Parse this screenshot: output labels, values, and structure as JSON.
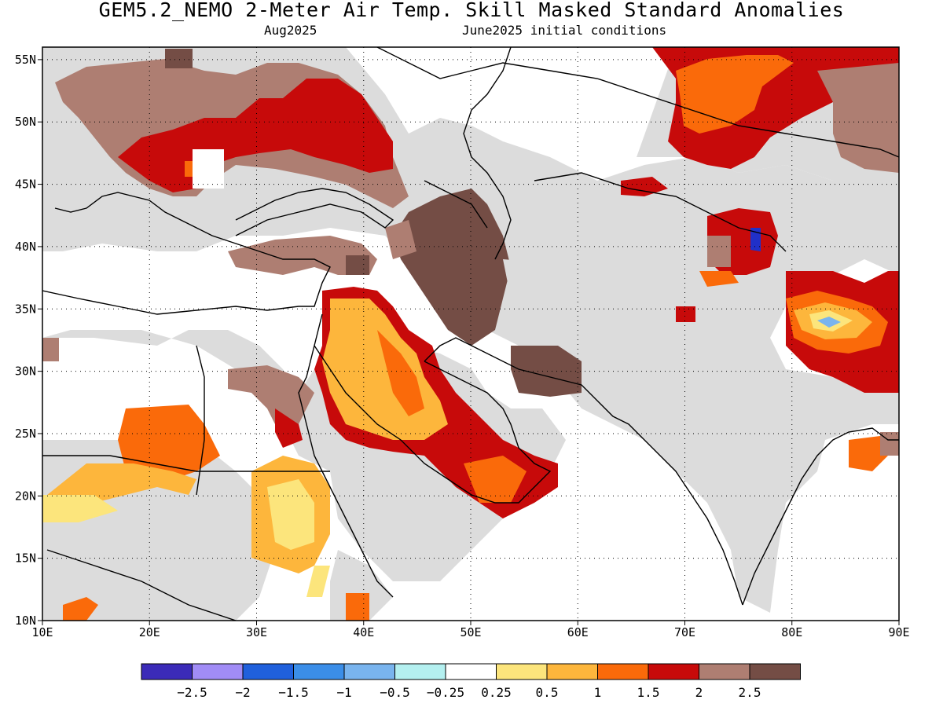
{
  "title": "GEM5.2_NEMO 2-Meter Air Temp. Skill Masked Standard Anomalies",
  "valid_month": "Aug2025",
  "init_conditions": "June2025 initial conditions",
  "map": {
    "lon_range": [
      10,
      90
    ],
    "lat_range": [
      10,
      56
    ],
    "lon_ticks": [
      "10E",
      "20E",
      "30E",
      "40E",
      "50E",
      "60E",
      "70E",
      "80E",
      "90E"
    ],
    "lat_ticks": [
      "10N",
      "15N",
      "20N",
      "25N",
      "30N",
      "35N",
      "40N",
      "45N",
      "50N",
      "55N"
    ],
    "grid": "dotted",
    "skill_mask_color": "#dcdcdc"
  },
  "colorbar": {
    "colors": [
      "#3b2bb8",
      "#a18cf6",
      "#2060dc",
      "#3b8ee8",
      "#79b4ee",
      "#b4f0f0",
      "#ffffff",
      "#fce57c",
      "#fdb63c",
      "#fa6a0a",
      "#c70a0a",
      "#ae7e72",
      "#744d45"
    ],
    "labels": [
      "-2.5",
      "-2",
      "-1.5",
      "-1",
      "-0.5",
      "-0.25",
      "0.25",
      "0.5",
      "1",
      "1.5",
      "2",
      "2.5"
    ]
  },
  "regions": [
    {
      "name": "central-asia-anomaly",
      "level": "1.5",
      "color": "#fa6a0a"
    },
    {
      "name": "siberia-anomaly",
      "level": "2",
      "color": "#c70a0a"
    },
    {
      "name": "arabia-anomaly",
      "level": "0.5",
      "color": "#fdb63c"
    },
    {
      "name": "iran-anomaly",
      "level": "2.5",
      "color": "#744d45"
    },
    {
      "name": "balkans-anomaly",
      "level": "2",
      "color": "#c70a0a"
    },
    {
      "name": "tibet-anomaly",
      "level": "0.5",
      "color": "#fdb63c"
    }
  ]
}
